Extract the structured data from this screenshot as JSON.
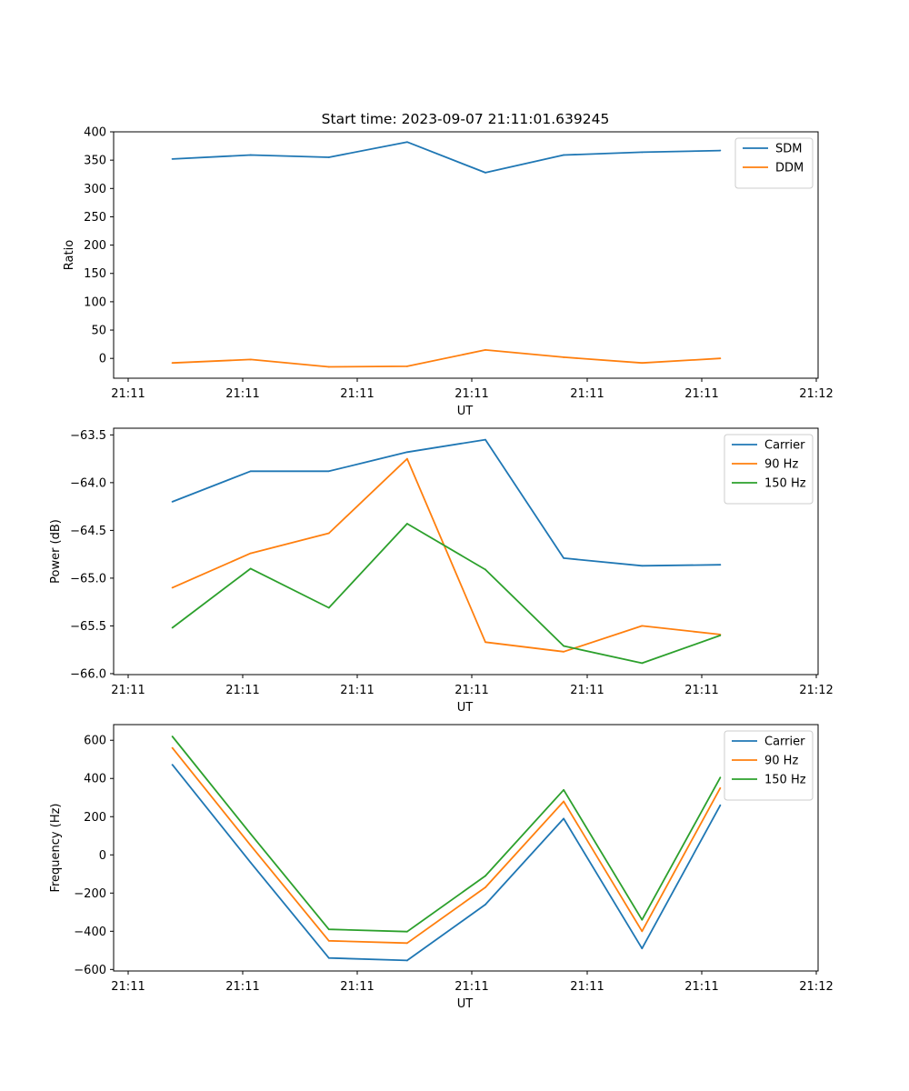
{
  "figure_title": "Start time: 2023-09-07 21:11:01.639245",
  "colors": {
    "c0": "#1f77b4",
    "c1": "#ff7f0e",
    "c2": "#2ca02c"
  },
  "chart_data": [
    {
      "type": "line",
      "xlabel": "UT",
      "ylabel": "Ratio",
      "xlim": [
        0,
        9
      ],
      "ylim": [
        -35,
        400
      ],
      "x": [
        0.75,
        1.75,
        2.75,
        3.75,
        4.75,
        5.75,
        6.75,
        7.75
      ],
      "xticks": [
        0,
        1,
        2,
        3,
        4,
        5,
        6
      ],
      "xticklabels": [
        "21:11",
        "21:11",
        "21:11",
        "21:11",
        "21:11",
        "21:11",
        "21:12"
      ],
      "yticks": [
        0,
        50,
        100,
        150,
        200,
        250,
        300,
        350,
        400
      ],
      "yticklabels": [
        "0",
        "50",
        "100",
        "150",
        "200",
        "250",
        "300",
        "350",
        "400"
      ],
      "legend": "top-right",
      "series": [
        {
          "name": "SDM",
          "color": "#1f77b4",
          "values": [
            352,
            359,
            355,
            382,
            328,
            359,
            364,
            367
          ]
        },
        {
          "name": "DDM",
          "color": "#ff7f0e",
          "values": [
            -8,
            -2,
            -15,
            -14,
            15,
            2,
            -8,
            0
          ]
        }
      ]
    },
    {
      "type": "line",
      "xlabel": "UT",
      "ylabel": "Power (dB)",
      "xlim": [
        0,
        9
      ],
      "ylim": [
        -66.01,
        -63.43
      ],
      "x": [
        0.75,
        1.75,
        2.75,
        3.75,
        4.75,
        5.75,
        6.75,
        7.75
      ],
      "xticks": [
        0,
        1,
        2,
        3,
        4,
        5,
        6
      ],
      "xticklabels": [
        "21:11",
        "21:11",
        "21:11",
        "21:11",
        "21:11",
        "21:11",
        "21:12"
      ],
      "yticks": [
        -66.0,
        -65.5,
        -65.0,
        -64.5,
        -64.0,
        -63.5
      ],
      "yticklabels": [
        "−66.0",
        "−65.5",
        "−65.0",
        "−64.5",
        "−64.0",
        "−63.5"
      ],
      "legend": "top-right",
      "series": [
        {
          "name": "Carrier",
          "color": "#1f77b4",
          "values": [
            -64.2,
            -63.88,
            -63.88,
            -63.68,
            -63.55,
            -64.79,
            -64.87,
            -64.86
          ]
        },
        {
          "name": "90 Hz",
          "color": "#ff7f0e",
          "values": [
            -65.1,
            -64.74,
            -64.53,
            -63.75,
            -65.67,
            -65.77,
            -65.5,
            -65.59
          ]
        },
        {
          "name": "150 Hz",
          "color": "#2ca02c",
          "values": [
            -65.52,
            -64.9,
            -65.31,
            -64.43,
            -64.91,
            -65.71,
            -65.89,
            -65.6
          ]
        }
      ]
    },
    {
      "type": "line",
      "xlabel": "UT",
      "ylabel": "Frequency (Hz)",
      "xlim": [
        0,
        9
      ],
      "ylim": [
        -608,
        682
      ],
      "x": [
        0.75,
        1.75,
        2.75,
        3.75,
        4.75,
        5.75,
        6.75,
        7.75
      ],
      "xticks": [
        0,
        1,
        2,
        3,
        4,
        5,
        6
      ],
      "xticklabels": [
        "21:11",
        "21:11",
        "21:11",
        "21:11",
        "21:11",
        "21:11",
        "21:12"
      ],
      "yticks": [
        -600,
        -400,
        -200,
        0,
        200,
        400,
        600
      ],
      "yticklabels": [
        "−600",
        "−400",
        "−200",
        "0",
        "200",
        "400",
        "600"
      ],
      "legend": "top-right",
      "series": [
        {
          "name": "Carrier",
          "color": "#1f77b4",
          "values": [
            472,
            -40,
            -540,
            -553,
            -260,
            190,
            -490,
            260
          ]
        },
        {
          "name": "90 Hz",
          "color": "#ff7f0e",
          "values": [
            560,
            50,
            -450,
            -462,
            -170,
            280,
            -400,
            350
          ]
        },
        {
          "name": "150 Hz",
          "color": "#2ca02c",
          "values": [
            620,
            110,
            -390,
            -402,
            -110,
            340,
            -340,
            405
          ]
        }
      ]
    }
  ]
}
